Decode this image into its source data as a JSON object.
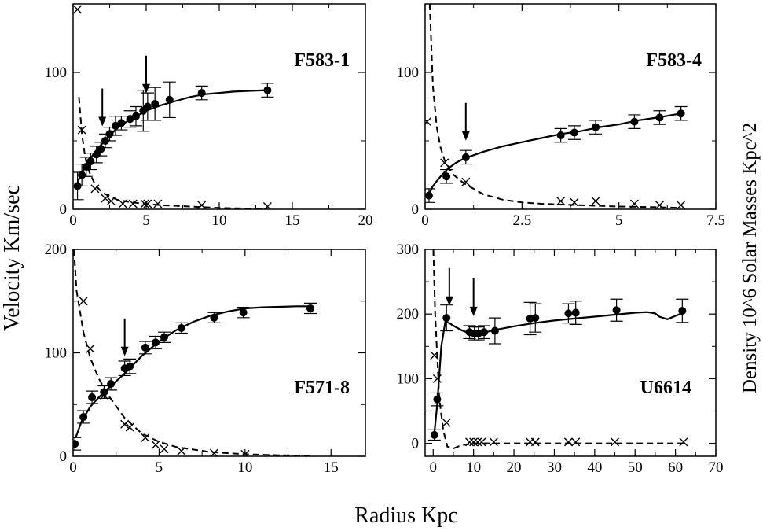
{
  "figure": {
    "xlabel": "Radius Kpc",
    "ylabel_left": "Velocity Km/sec",
    "ylabel_right": "Density 10^6 Solar Masses Kpc^2"
  },
  "chart_data": [
    {
      "type": "scatter",
      "name": "F583-1",
      "xlim": [
        0,
        20
      ],
      "ylim": [
        0,
        150
      ],
      "xticks": [
        0,
        5,
        10,
        15,
        20
      ],
      "yticks": [
        0,
        100
      ],
      "series": [
        {
          "name": "velocity",
          "x": [
            0.3,
            0.6,
            0.9,
            1.2,
            1.6,
            1.9,
            2.2,
            2.5,
            2.9,
            3.3,
            3.9,
            4.3,
            4.8,
            5.1,
            5.6,
            6.6,
            8.8,
            13.3
          ],
          "y": [
            17,
            25,
            31,
            35,
            40,
            44,
            50,
            55,
            61,
            63,
            66,
            68,
            72,
            75,
            77,
            80,
            85,
            87
          ],
          "err": [
            10,
            8,
            7,
            6,
            6,
            5,
            5,
            5,
            7,
            5,
            6,
            7,
            15,
            10,
            12,
            13,
            5,
            5
          ]
        },
        {
          "name": "density",
          "x": [
            0.3,
            0.6,
            1.5,
            2.2,
            2.6,
            3.4,
            4.1,
            4.9,
            5.1,
            5.8,
            8.8,
            13.3
          ],
          "y": [
            146,
            58,
            15,
            8,
            6,
            4,
            4,
            4,
            4,
            4,
            3,
            2
          ]
        },
        {
          "name": "velocity_fit",
          "x": [
            0.2,
            0.5,
            1,
            1.5,
            2,
            2.5,
            3,
            3.5,
            4,
            5,
            6,
            7,
            8,
            9,
            10,
            11,
            12,
            13.3
          ],
          "y": [
            16,
            25,
            34,
            42,
            48,
            54,
            59,
            63,
            66,
            72,
            76,
            79,
            82,
            84,
            85,
            86,
            86.5,
            87
          ]
        },
        {
          "name": "density_fit",
          "x": [
            0.4,
            0.6,
            0.8,
            1,
            1.5,
            2,
            3,
            4,
            5,
            6,
            8,
            10,
            12,
            13.3
          ],
          "y": [
            82,
            55,
            40,
            30,
            18,
            12,
            7,
            5,
            4,
            3,
            2,
            1,
            0.5,
            0.5
          ]
        }
      ],
      "arrows_at_x": [
        2.0,
        5.0
      ]
    },
    {
      "type": "scatter",
      "name": "F583-4",
      "xlim": [
        0,
        7.5
      ],
      "ylim": [
        0,
        150
      ],
      "xticks": [
        0,
        2.5,
        5,
        7.5
      ],
      "xtick_labels": [
        "0",
        "2.5",
        "5",
        "7.5"
      ],
      "yticks": [
        0,
        100
      ],
      "series": [
        {
          "name": "velocity",
          "x": [
            0.1,
            0.55,
            1.05,
            3.5,
            3.85,
            4.4,
            5.4,
            6.05,
            6.6
          ],
          "y": [
            10,
            24,
            38,
            54,
            56,
            60,
            64,
            67,
            70
          ],
          "err": [
            5,
            5,
            5,
            5,
            5,
            5,
            5,
            5,
            5
          ]
        },
        {
          "name": "density",
          "x": [
            0.05,
            0.5,
            1.05,
            3.5,
            3.85,
            4.4,
            5.4,
            6.05,
            6.6
          ],
          "y": [
            64,
            34,
            20,
            6,
            5,
            6,
            4,
            3,
            3
          ]
        },
        {
          "name": "velocity_fit",
          "x": [
            0.05,
            0.2,
            0.4,
            0.6,
            0.8,
            1,
            1.5,
            2,
            2.5,
            3,
            3.5,
            4,
            4.5,
            5,
            5.5,
            6,
            6.6
          ],
          "y": [
            8,
            17,
            24,
            30,
            34,
            37,
            42,
            46,
            49,
            52,
            55,
            57,
            60,
            62,
            65,
            67,
            70
          ]
        },
        {
          "name": "density_fit",
          "x": [
            0.12,
            0.2,
            0.3,
            0.4,
            0.5,
            0.7,
            1,
            1.5,
            2,
            2.5,
            3,
            4,
            5,
            6,
            6.6
          ],
          "y": [
            150,
            90,
            60,
            45,
            36,
            26,
            19,
            11,
            7,
            5,
            4,
            3,
            2,
            1.5,
            1
          ]
        }
      ],
      "arrows_at_x": [
        1.05
      ]
    },
    {
      "type": "scatter",
      "name": "F571-8",
      "xlim": [
        0,
        17
      ],
      "ylim": [
        0,
        200
      ],
      "xticks": [
        0,
        5,
        10,
        15
      ],
      "yticks": [
        0,
        100,
        200
      ],
      "series": [
        {
          "name": "velocity",
          "x": [
            0.1,
            0.6,
            1.1,
            1.8,
            2.2,
            3.0,
            3.3,
            4.2,
            4.8,
            5.3,
            6.3,
            8.2,
            9.9,
            13.8
          ],
          "y": [
            12,
            38,
            57,
            62,
            70,
            85,
            87,
            105,
            110,
            115,
            124,
            134,
            139,
            143
          ],
          "err": [
            6,
            6,
            6,
            6,
            6,
            7,
            7,
            6,
            6,
            5,
            5,
            5,
            5,
            5
          ]
        },
        {
          "name": "density",
          "x": [
            0.6,
            1.0,
            1.8,
            3.0,
            3.3,
            4.2,
            4.8,
            5.3,
            6.3,
            8.2,
            10.0
          ],
          "y": [
            150,
            104,
            59,
            31,
            28,
            18,
            11,
            7,
            5,
            3,
            2
          ]
        },
        {
          "name": "velocity_fit",
          "x": [
            0.15,
            0.5,
            1,
            1.5,
            2,
            3,
            4,
            5,
            6,
            7,
            8,
            9,
            10,
            11,
            12,
            13,
            13.9
          ],
          "y": [
            18,
            34,
            48,
            57,
            65,
            80,
            97,
            111,
            122,
            130,
            136,
            140,
            143,
            144,
            144.5,
            145,
            145
          ]
        },
        {
          "name": "density_fit",
          "x": [
            0.05,
            0.2,
            0.4,
            0.6,
            1,
            1.5,
            2,
            3,
            4,
            5,
            6,
            8,
            10,
            12,
            14
          ],
          "y": [
            200,
            160,
            140,
            120,
            95,
            75,
            60,
            37,
            22,
            14,
            9,
            4,
            2,
            1,
            0.5
          ]
        }
      ],
      "arrows_at_x": [
        3.0
      ]
    },
    {
      "type": "scatter",
      "name": "U6614",
      "xlim": [
        -2,
        70
      ],
      "ylim": [
        -20,
        300
      ],
      "xticks": [
        0,
        10,
        20,
        30,
        40,
        50,
        60,
        70
      ],
      "yticks": [
        0,
        100,
        200,
        300
      ],
      "series": [
        {
          "name": "velocity",
          "x": [
            0.3,
            1.0,
            3.3,
            9.0,
            10.2,
            11.2,
            12.6,
            15.3,
            24.0,
            25.3,
            33.5,
            35.3,
            45.4,
            61.7
          ],
          "y": [
            13,
            68,
            194,
            172,
            170,
            170,
            172,
            174,
            193,
            194,
            201,
            202,
            206,
            205
          ],
          "err": [
            8,
            10,
            20,
            10,
            10,
            10,
            10,
            20,
            25,
            22,
            15,
            18,
            17,
            18
          ]
        },
        {
          "name": "density",
          "x": [
            0.3,
            1.0,
            3.3,
            9.0,
            10.0,
            11.0,
            12.0,
            15.0,
            24.0,
            25.3,
            33.5,
            35.3,
            45.0,
            62.0
          ],
          "y": [
            136,
            100,
            32,
            2,
            2,
            2,
            2,
            2,
            2,
            2,
            2,
            2,
            2,
            2
          ]
        },
        {
          "name": "velocity_fit",
          "x": [
            0.2,
            1,
            2,
            3,
            4,
            5,
            7,
            9,
            12,
            15,
            20,
            25,
            30,
            35,
            40,
            45,
            50,
            53,
            55,
            56,
            58,
            61.5
          ],
          "y": [
            10,
            60,
            150,
            188,
            186,
            182,
            175,
            170,
            170,
            175,
            181,
            186,
            190,
            193,
            196,
            199,
            202,
            203,
            201,
            196,
            192,
            201
          ]
        },
        {
          "name": "density_fit",
          "x": [
            0.05,
            0.5,
            1.5,
            2.5,
            3.5,
            5,
            7,
            10,
            15,
            20,
            30,
            40,
            50,
            60,
            62
          ],
          "y": [
            300,
            200,
            70,
            20,
            -5,
            -8,
            -3,
            0,
            0,
            0,
            0,
            0,
            0,
            0,
            0
          ]
        }
      ],
      "arrows_at_x": [
        4.0,
        10.0
      ]
    }
  ]
}
